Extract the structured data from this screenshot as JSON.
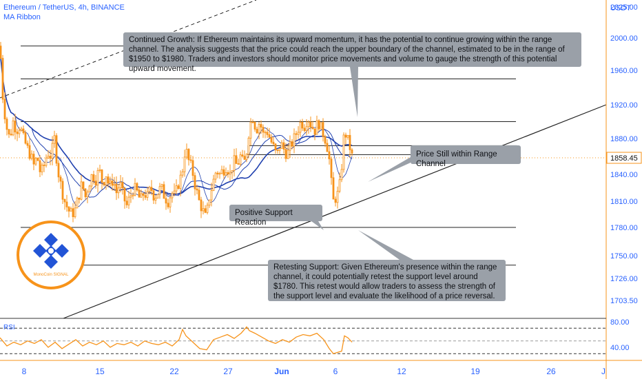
{
  "header": {
    "symbol_title": "Ethereum / TetherUS, 4h, BINANCE",
    "indicator": "MA Ribbon"
  },
  "price_axis": {
    "currency": "USDT",
    "last_price_label": "1858.45"
  },
  "notes": {
    "continued_growth": "Continued Growth: If Ethereum maintains its upward momentum, it has the potential to continue growing within the range channel. The analysis suggests that the price could reach the upper boundary of the channel, estimated to be in the range of $1950 to $1980. Traders and investors should monitor price movements and volume to gauge the strength of this potential upward movement.",
    "range_channel": "Price Still within Range Channel",
    "support_reaction": "Positive Support Reaction",
    "retesting_support": "Retesting Support: Given Ethereum's presence within the range channel, it could potentially retest the support level around $1780. This retest would allow traders to assess the strength of the support level and evaluate the likelihood of a price reversal."
  },
  "logo": {
    "caption": "MonoCoin SIGNAL"
  },
  "colors": {
    "candle": "#f7931a",
    "ma": "#1e3fae",
    "accent": "#2962ff",
    "note_bg": "#9aa0a8",
    "rsi": "#f7931a"
  },
  "chart_data": [
    {
      "type": "candlestick",
      "title": "Ethereum / TetherUS, 4h, BINANCE",
      "y_unit": "USDT",
      "x_tick_labels": [
        "8",
        "15",
        "22",
        "27",
        "Jun",
        "6",
        "12",
        "19",
        "26",
        "J"
      ],
      "y_tick_labels": [
        "2025.00",
        "2000.00",
        "1960.00",
        "1920.00",
        "1880.00",
        "1840.00",
        "1810.00",
        "1780.00",
        "1750.00",
        "1726.00",
        "1703.50"
      ],
      "last_price": 1858.45,
      "levels": [
        1990,
        1950,
        1900,
        1780,
        1740
      ],
      "range_box": [
        1862,
        1872
      ],
      "trendline": {
        "from": {
          "x": "2",
          "y": 1690
        },
        "to": {
          "x": "J",
          "y": 1920
        }
      },
      "price_path": [
        [
          0,
          1990
        ],
        [
          4,
          1930
        ],
        [
          9,
          1895
        ],
        [
          14,
          1880
        ],
        [
          19,
          1900
        ],
        [
          24,
          1890
        ],
        [
          29,
          1895
        ],
        [
          34,
          1880
        ],
        [
          39,
          1870
        ],
        [
          44,
          1862
        ],
        [
          49,
          1850
        ],
        [
          54,
          1860
        ],
        [
          59,
          1840
        ],
        [
          64,
          1850
        ],
        [
          69,
          1865
        ],
        [
          74,
          1860
        ],
        [
          79,
          1880
        ],
        [
          84,
          1845
        ],
        [
          89,
          1825
        ],
        [
          94,
          1810
        ],
        [
          99,
          1800
        ],
        [
          104,
          1795
        ],
        [
          109,
          1800
        ],
        [
          114,
          1815
        ],
        [
          119,
          1830
        ],
        [
          124,
          1815
        ],
        [
          129,
          1830
        ],
        [
          134,
          1840
        ],
        [
          139,
          1835
        ],
        [
          144,
          1845
        ],
        [
          149,
          1830
        ],
        [
          154,
          1840
        ],
        [
          159,
          1825
        ],
        [
          164,
          1835
        ],
        [
          169,
          1820
        ],
        [
          174,
          1830
        ],
        [
          179,
          1815
        ],
        [
          184,
          1805
        ],
        [
          189,
          1815
        ],
        [
          194,
          1825
        ],
        [
          199,
          1820
        ],
        [
          204,
          1810
        ],
        [
          209,
          1820
        ],
        [
          214,
          1815
        ],
        [
          219,
          1825
        ],
        [
          224,
          1815
        ],
        [
          229,
          1820
        ],
        [
          234,
          1825
        ],
        [
          239,
          1815
        ],
        [
          244,
          1810
        ],
        [
          249,
          1820
        ],
        [
          254,
          1815
        ],
        [
          259,
          1830
        ],
        [
          264,
          1840
        ],
        [
          269,
          1870
        ],
        [
          274,
          1855
        ],
        [
          279,
          1845
        ],
        [
          284,
          1825
        ],
        [
          289,
          1810
        ],
        [
          294,
          1800
        ],
        [
          299,
          1790
        ],
        [
          304,
          1815
        ],
        [
          309,
          1830
        ],
        [
          314,
          1845
        ],
        [
          319,
          1840
        ],
        [
          324,
          1845
        ],
        [
          329,
          1850
        ],
        [
          334,
          1840
        ],
        [
          339,
          1855
        ],
        [
          344,
          1850
        ],
        [
          349,
          1860
        ],
        [
          354,
          1850
        ],
        [
          359,
          1870
        ],
        [
          362,
          1895
        ],
        [
          367,
          1905
        ],
        [
          372,
          1890
        ],
        [
          377,
          1900
        ],
        [
          382,
          1885
        ],
        [
          387,
          1890
        ],
        [
          392,
          1880
        ],
        [
          397,
          1870
        ],
        [
          402,
          1860
        ],
        [
          407,
          1875
        ],
        [
          412,
          1868
        ],
        [
          417,
          1862
        ],
        [
          422,
          1872
        ],
        [
          427,
          1880
        ],
        [
          432,
          1890
        ],
        [
          437,
          1900
        ],
        [
          442,
          1895
        ],
        [
          447,
          1905
        ],
        [
          452,
          1895
        ],
        [
          457,
          1890
        ],
        [
          462,
          1900
        ],
        [
          467,
          1890
        ],
        [
          472,
          1880
        ],
        [
          477,
          1865
        ],
        [
          481,
          1830
        ],
        [
          484,
          1810
        ],
        [
          488,
          1815
        ],
        [
          492,
          1820
        ],
        [
          496,
          1850
        ],
        [
          500,
          1890
        ],
        [
          504,
          1880
        ],
        [
          508,
          1870
        ],
        [
          511,
          1860
        ]
      ]
    },
    {
      "type": "line",
      "title": "RSI",
      "y_tick_labels": [
        "80.00",
        "40.00"
      ],
      "levels": [
        70,
        50,
        30
      ],
      "series": [
        {
          "values": [
            [
              0,
              55
            ],
            [
              10,
              42
            ],
            [
              20,
              48
            ],
            [
              30,
              44
            ],
            [
              40,
              50
            ],
            [
              50,
              46
            ],
            [
              60,
              52
            ],
            [
              70,
              40
            ],
            [
              80,
              48
            ],
            [
              90,
              38
            ],
            [
              100,
              45
            ],
            [
              110,
              52
            ],
            [
              120,
              42
            ],
            [
              130,
              48
            ],
            [
              140,
              44
            ],
            [
              150,
              50
            ],
            [
              160,
              40
            ],
            [
              170,
              46
            ],
            [
              180,
              44
            ],
            [
              190,
              48
            ],
            [
              200,
              42
            ],
            [
              210,
              50
            ],
            [
              220,
              46
            ],
            [
              230,
              44
            ],
            [
              240,
              48
            ],
            [
              250,
              42
            ],
            [
              260,
              52
            ],
            [
              265,
              68
            ],
            [
              270,
              58
            ],
            [
              280,
              48
            ],
            [
              290,
              38
            ],
            [
              300,
              36
            ],
            [
              310,
              52
            ],
            [
              320,
              56
            ],
            [
              330,
              60
            ],
            [
              340,
              54
            ],
            [
              350,
              62
            ],
            [
              358,
              72
            ],
            [
              362,
              66
            ],
            [
              370,
              62
            ],
            [
              380,
              56
            ],
            [
              390,
              50
            ],
            [
              400,
              46
            ],
            [
              410,
              52
            ],
            [
              420,
              48
            ],
            [
              430,
              56
            ],
            [
              440,
              60
            ],
            [
              450,
              58
            ],
            [
              460,
              62
            ],
            [
              470,
              52
            ],
            [
              478,
              38
            ],
            [
              484,
              30
            ],
            [
              490,
              32
            ],
            [
              496,
              34
            ],
            [
              500,
              58
            ],
            [
              505,
              55
            ],
            [
              511,
              48
            ]
          ]
        }
      ]
    }
  ]
}
